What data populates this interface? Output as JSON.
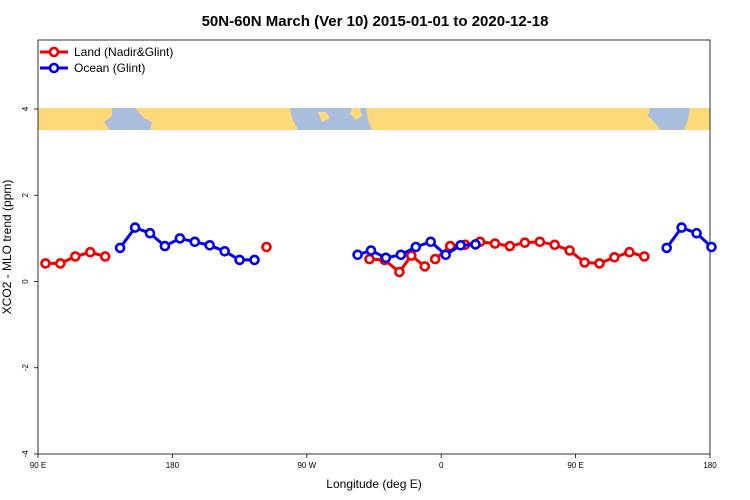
{
  "chart_data": {
    "type": "line",
    "title": "50N-60N March (Ver 10)   2015-01-01 to 2020-12-18",
    "xlabel": "Longitude (deg E)",
    "ylabel": "XCO2 - MLO trend (ppm)",
    "xlim": [
      90,
      540
    ],
    "ylim": [
      -4,
      5.6
    ],
    "x_ticks": [
      {
        "value": 90,
        "label": "90 E"
      },
      {
        "value": 180,
        "label": "180"
      },
      {
        "value": 270,
        "label": "90 W"
      },
      {
        "value": 360,
        "label": "0"
      },
      {
        "value": 450,
        "label": "90 E"
      },
      {
        "value": 540,
        "label": "180"
      }
    ],
    "y_ticks": [
      {
        "value": -4,
        "label": "-4"
      },
      {
        "value": -2,
        "label": "-2"
      },
      {
        "value": 0,
        "label": "0"
      },
      {
        "value": 2,
        "label": "2"
      },
      {
        "value": 4,
        "label": "4"
      }
    ],
    "grid": false,
    "legend_position": "top-left",
    "map_strip": {
      "y_range": [
        3.55,
        4.05
      ],
      "land_color": "#FDD97A",
      "ocean_color": "#A9BEDD"
    },
    "series": [
      {
        "name": "Land (Nadir&Glint)",
        "color": "#EE0000",
        "segments": [
          [
            [
              95,
              0.42
            ],
            [
              105,
              0.42
            ],
            [
              115,
              0.58
            ],
            [
              125,
              0.68
            ],
            [
              135,
              0.58
            ]
          ],
          [
            [
              312,
              0.52
            ],
            [
              322,
              0.5
            ],
            [
              332,
              0.22
            ],
            [
              340,
              0.6
            ],
            [
              349,
              0.35
            ]
          ],
          [
            [
              243,
              0.8
            ]
          ],
          [
            [
              356,
              0.52
            ],
            [
              366,
              0.82
            ],
            [
              376,
              0.85
            ],
            [
              386,
              0.92
            ],
            [
              396,
              0.88
            ],
            [
              406,
              0.82
            ],
            [
              416,
              0.9
            ],
            [
              426,
              0.92
            ],
            [
              436,
              0.85
            ],
            [
              446,
              0.72
            ],
            [
              456,
              0.44
            ],
            [
              466,
              0.42
            ],
            [
              476,
              0.56
            ],
            [
              486,
              0.68
            ],
            [
              496,
              0.58
            ]
          ]
        ]
      },
      {
        "name": "Ocean (Glint)",
        "color": "#0000EE",
        "segments": [
          [
            [
              145,
              0.78
            ],
            [
              155,
              1.25
            ],
            [
              165,
              1.12
            ],
            [
              175,
              0.82
            ],
            [
              185,
              1.0
            ],
            [
              195,
              0.92
            ],
            [
              205,
              0.84
            ],
            [
              215,
              0.7
            ],
            [
              225,
              0.5
            ],
            [
              235,
              0.5
            ]
          ],
          [
            [
              304,
              0.62
            ],
            [
              313,
              0.72
            ],
            [
              323,
              0.55
            ],
            [
              333,
              0.62
            ],
            [
              343,
              0.8
            ],
            [
              353,
              0.92
            ],
            [
              363,
              0.62
            ],
            [
              373,
              0.84
            ],
            [
              383,
              0.86
            ]
          ],
          [
            [
              511,
              0.78
            ],
            [
              521,
              1.25
            ],
            [
              531,
              1.12
            ],
            [
              541,
              0.8
            ]
          ]
        ]
      }
    ]
  }
}
